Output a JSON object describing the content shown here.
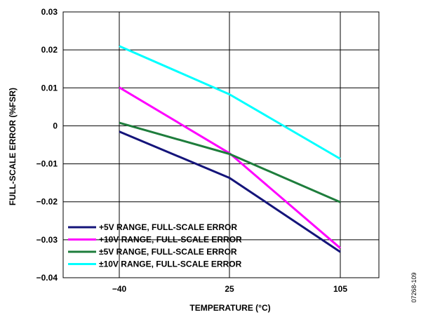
{
  "chart_data": {
    "type": "line",
    "categories": [
      "−40",
      "25",
      "105"
    ],
    "series": [
      {
        "name": "+5V RANGE, FULL-SCALE ERROR",
        "color": "#14147a",
        "values": [
          -0.0015,
          -0.0137,
          -0.0332
        ]
      },
      {
        "name": "+10V RANGE, FULL-SCALE ERROR",
        "color": "#ff00ff",
        "values": [
          0.0101,
          -0.0072,
          -0.0322
        ]
      },
      {
        "name": "±5V RANGE, FULL-SCALE ERROR",
        "color": "#1e7d3c",
        "values": [
          0.0008,
          -0.0074,
          -0.0201
        ]
      },
      {
        "name": "±10V RANGE, FULL-SCALE ERROR",
        "color": "#00ffff",
        "values": [
          0.021,
          0.0083,
          -0.0087
        ]
      }
    ],
    "yticks": [
      "0.03",
      "0.02",
      "0.01",
      "0",
      "−0.01",
      "−0.02",
      "−0.03",
      "−0.04"
    ],
    "ytick_values": [
      0.03,
      0.02,
      0.01,
      0,
      -0.01,
      -0.02,
      -0.03,
      -0.04
    ],
    "xlabel": "TEMPERATURE (°C)",
    "ylabel": "FULL-SCALE ERROR (%FSR)",
    "ylim": [
      -0.04,
      0.03
    ],
    "grid": true,
    "legend_position": "bottom-left"
  },
  "figure_id": "07268-109"
}
